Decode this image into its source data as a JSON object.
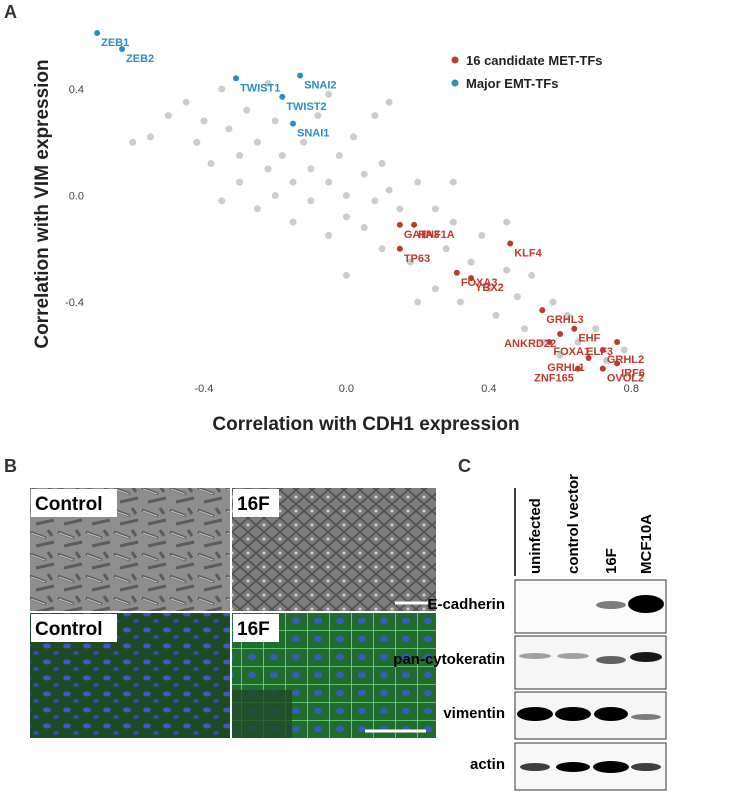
{
  "panel_labels": [
    "A",
    "B",
    "C"
  ],
  "chart_data": {
    "type": "scatter",
    "xlabel": "Correlation with CDH1 expression",
    "ylabel": "Correlation with VIM expression",
    "xlim": [
      -0.72,
      0.83
    ],
    "ylim": [
      -0.7,
      0.64
    ],
    "xticks": [
      -0.4,
      {
        "value": 0,
        "label": "0.0"
      },
      0.4,
      0.8
    ],
    "yticks": [
      -0.4,
      {
        "value": 0,
        "label": "0.0"
      },
      0.4
    ],
    "grid": false,
    "legend": "upper right",
    "series": [
      {
        "color": "#cccccc",
        "x": [
          -0.55,
          -0.5,
          -0.45,
          -0.42,
          -0.4,
          -0.38,
          -0.35,
          -0.33,
          -0.3,
          -0.3,
          -0.28,
          -0.25,
          -0.25,
          -0.22,
          -0.2,
          -0.2,
          -0.18,
          -0.15,
          -0.15,
          -0.12,
          -0.1,
          -0.1,
          -0.08,
          -0.05,
          -0.05,
          -0.02,
          0.0,
          0.0,
          0.02,
          0.05,
          0.05,
          0.08,
          0.1,
          0.1,
          0.12,
          0.15,
          0.18,
          0.2,
          0.22,
          0.25,
          0.25,
          0.28,
          0.3,
          0.32,
          0.35,
          0.38,
          0.4,
          0.42,
          0.45,
          0.48,
          0.5,
          0.52,
          0.55,
          0.58,
          0.6,
          0.62,
          0.65,
          0.7,
          0.73,
          0.78,
          -0.05,
          0.08,
          -0.35,
          0.2,
          0.3,
          0.45,
          -0.6,
          0.0,
          0.12,
          -0.22
        ],
        "y": [
          0.22,
          0.3,
          0.35,
          0.2,
          0.28,
          0.12,
          0.4,
          0.25,
          0.15,
          0.05,
          0.32,
          0.2,
          -0.05,
          0.1,
          0.28,
          0.0,
          0.15,
          0.05,
          -0.1,
          0.2,
          0.1,
          -0.02,
          0.3,
          0.05,
          -0.15,
          0.15,
          0.0,
          -0.08,
          0.22,
          0.08,
          -0.12,
          -0.02,
          0.12,
          -0.2,
          0.02,
          -0.05,
          -0.25,
          0.05,
          -0.15,
          -0.05,
          -0.35,
          -0.2,
          -0.1,
          -0.4,
          -0.25,
          -0.15,
          -0.35,
          -0.45,
          -0.28,
          -0.38,
          -0.5,
          -0.3,
          -0.55,
          -0.4,
          -0.6,
          -0.45,
          -0.55,
          -0.5,
          -0.62,
          -0.58,
          0.38,
          0.3,
          -0.02,
          -0.4,
          0.05,
          -0.1,
          0.2,
          -0.3,
          0.35,
          0.42
        ]
      },
      {
        "name": "16 candidate MET-TFs",
        "color": "#c0392b",
        "labels": [
          "HNF1A",
          "GATA3",
          "TP63",
          "KLF4",
          "FOXA3",
          "YBX2",
          "GRHL3",
          "EHF",
          "ANKRD22",
          "FOXA1",
          "ELF3",
          "GRHL2",
          "GRHL1",
          "IRF6",
          "ZNF165",
          "OVOL2"
        ],
        "x": [
          0.19,
          0.15,
          0.15,
          0.46,
          0.31,
          0.35,
          0.55,
          0.64,
          0.6,
          0.57,
          0.76,
          0.72,
          0.68,
          0.76,
          0.65,
          0.72
        ],
        "y": [
          -0.11,
          -0.11,
          -0.2,
          -0.18,
          -0.29,
          -0.31,
          -0.43,
          -0.5,
          -0.52,
          -0.55,
          -0.55,
          -0.58,
          -0.61,
          -0.63,
          -0.65,
          -0.65
        ]
      },
      {
        "name": "Major EMT-TFs",
        "color": "#2a8fc1",
        "labels": [
          "ZEB1",
          "ZEB2",
          "TWIST1",
          "SNAI2",
          "TWIST2",
          "SNAI1"
        ],
        "x": [
          -0.7,
          -0.63,
          -0.31,
          -0.13,
          -0.18,
          -0.15
        ],
        "y": [
          0.61,
          0.55,
          0.44,
          0.45,
          0.37,
          0.27
        ]
      }
    ]
  },
  "micrographs": {
    "labels": [
      "Control",
      "16F",
      "Control",
      "16F"
    ]
  },
  "western_blot": {
    "lanes": [
      "uninfected",
      "control vector",
      "16F",
      "MCF10A"
    ],
    "proteins": [
      "E-cadherin",
      "pan-cytokeratin",
      "vimentin",
      "actin"
    ]
  }
}
